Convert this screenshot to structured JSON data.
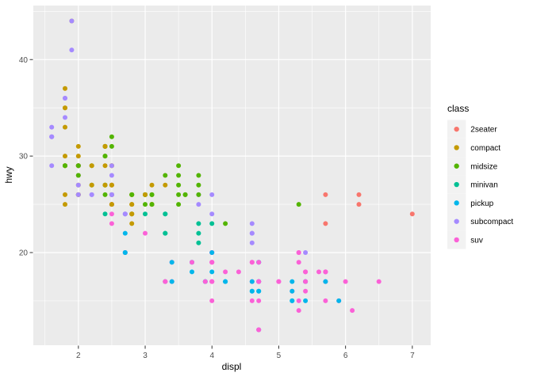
{
  "chart_data": {
    "type": "scatter",
    "title": "",
    "xlabel": "displ",
    "ylabel": "hwy",
    "x_domain": [
      1.325,
      7.275
    ],
    "y_domain": [
      10.4,
      45.6
    ],
    "x_major_ticks": [
      2,
      3,
      4,
      5,
      6,
      7
    ],
    "x_minor_ticks": [
      1.5,
      2.5,
      3.5,
      4.5,
      5.5,
      6.5
    ],
    "y_major_ticks": [
      20,
      30,
      40
    ],
    "y_minor_ticks": [
      15,
      25,
      35,
      45
    ],
    "grid": true,
    "legend_position": "right",
    "legend_title": "class",
    "panel_bg": "#EBEBEB",
    "grid_color": "#FFFFFF",
    "tick_mark_color": "#333333",
    "tick_label_color": "#4D4D4D",
    "axis_title_color": "#000000",
    "legend_key_bg": "#F2F2F2",
    "classes": [
      {
        "label": "2seater",
        "color": "#F8766D"
      },
      {
        "label": "compact",
        "color": "#C49A00"
      },
      {
        "label": "midsize",
        "color": "#53B400"
      },
      {
        "label": "minivan",
        "color": "#00C094"
      },
      {
        "label": "pickup",
        "color": "#00B6EB"
      },
      {
        "label": "subcompact",
        "color": "#A58AFF"
      },
      {
        "label": "suv",
        "color": "#FB61D7"
      }
    ],
    "points": [
      [
        1.8,
        29,
        1
      ],
      [
        1.8,
        29,
        1
      ],
      [
        2.0,
        31,
        1
      ],
      [
        2.0,
        30,
        1
      ],
      [
        2.8,
        26,
        1
      ],
      [
        2.8,
        26,
        1
      ],
      [
        3.1,
        27,
        1
      ],
      [
        1.8,
        26,
        1
      ],
      [
        1.8,
        25,
        1
      ],
      [
        2.0,
        28,
        1
      ],
      [
        2.0,
        27,
        1
      ],
      [
        2.8,
        25,
        1
      ],
      [
        2.8,
        25,
        1
      ],
      [
        3.1,
        25,
        1
      ],
      [
        3.1,
        25,
        1
      ],
      [
        2.8,
        24,
        2
      ],
      [
        3.1,
        25,
        2
      ],
      [
        4.2,
        23,
        2
      ],
      [
        5.3,
        20,
        6
      ],
      [
        5.3,
        15,
        6
      ],
      [
        5.3,
        20,
        6
      ],
      [
        5.7,
        17,
        6
      ],
      [
        6.0,
        17,
        6
      ],
      [
        5.7,
        26,
        0
      ],
      [
        5.7,
        23,
        0
      ],
      [
        6.2,
        26,
        0
      ],
      [
        6.2,
        25,
        0
      ],
      [
        7.0,
        24,
        0
      ],
      [
        5.3,
        19,
        6
      ],
      [
        5.3,
        14,
        6
      ],
      [
        5.7,
        15,
        6
      ],
      [
        6.5,
        17,
        6
      ],
      [
        2.4,
        27,
        2
      ],
      [
        2.4,
        30,
        2
      ],
      [
        3.1,
        26,
        2
      ],
      [
        3.5,
        29,
        2
      ],
      [
        3.6,
        26,
        2
      ],
      [
        2.4,
        24,
        3
      ],
      [
        3.0,
        24,
        3
      ],
      [
        3.3,
        22,
        3
      ],
      [
        3.3,
        22,
        3
      ],
      [
        3.3,
        24,
        3
      ],
      [
        3.3,
        24,
        3
      ],
      [
        3.3,
        17,
        3
      ],
      [
        3.8,
        22,
        3
      ],
      [
        3.8,
        21,
        3
      ],
      [
        3.8,
        23,
        3
      ],
      [
        4.0,
        23,
        3
      ],
      [
        3.7,
        19,
        4
      ],
      [
        3.7,
        18,
        4
      ],
      [
        3.9,
        17,
        4
      ],
      [
        3.9,
        17,
        4
      ],
      [
        4.7,
        19,
        4
      ],
      [
        4.7,
        19,
        4
      ],
      [
        4.7,
        12,
        4
      ],
      [
        5.2,
        17,
        4
      ],
      [
        5.2,
        15,
        4
      ],
      [
        3.9,
        17,
        6
      ],
      [
        4.7,
        17,
        6
      ],
      [
        4.7,
        12,
        6
      ],
      [
        4.7,
        17,
        6
      ],
      [
        5.2,
        16,
        6
      ],
      [
        5.7,
        18,
        6
      ],
      [
        5.9,
        15,
        6
      ],
      [
        4.7,
        16,
        4
      ],
      [
        4.7,
        17,
        4
      ],
      [
        4.7,
        17,
        4
      ],
      [
        4.7,
        16,
        4
      ],
      [
        5.2,
        15,
        4
      ],
      [
        5.2,
        16,
        4
      ],
      [
        5.7,
        17,
        4
      ],
      [
        5.9,
        15,
        4
      ],
      [
        4.6,
        17,
        6
      ],
      [
        5.4,
        17,
        6
      ],
      [
        5.4,
        18,
        6
      ],
      [
        4.0,
        17,
        6
      ],
      [
        4.0,
        17,
        6
      ],
      [
        4.0,
        19,
        6
      ],
      [
        4.0,
        19,
        6
      ],
      [
        4.6,
        19,
        6
      ],
      [
        5.0,
        17,
        6
      ],
      [
        4.2,
        17,
        4
      ],
      [
        4.2,
        17,
        4
      ],
      [
        4.6,
        16,
        4
      ],
      [
        4.6,
        16,
        4
      ],
      [
        4.6,
        17,
        4
      ],
      [
        5.4,
        15,
        4
      ],
      [
        5.4,
        17,
        4
      ],
      [
        3.8,
        26,
        5
      ],
      [
        3.8,
        25,
        5
      ],
      [
        4.0,
        26,
        5
      ],
      [
        4.0,
        24,
        5
      ],
      [
        4.6,
        21,
        5
      ],
      [
        4.6,
        22,
        5
      ],
      [
        4.6,
        23,
        5
      ],
      [
        4.6,
        22,
        5
      ],
      [
        5.4,
        20,
        5
      ],
      [
        1.6,
        33,
        5
      ],
      [
        1.6,
        32,
        5
      ],
      [
        1.6,
        32,
        5
      ],
      [
        1.6,
        29,
        5
      ],
      [
        1.6,
        32,
        5
      ],
      [
        1.8,
        34,
        5
      ],
      [
        1.8,
        36,
        5
      ],
      [
        1.8,
        36,
        5
      ],
      [
        2.0,
        29,
        5
      ],
      [
        2.4,
        26,
        2
      ],
      [
        2.4,
        27,
        2
      ],
      [
        2.4,
        30,
        2
      ],
      [
        2.4,
        31,
        2
      ],
      [
        2.5,
        26,
        2
      ],
      [
        2.5,
        26,
        2
      ],
      [
        3.3,
        28,
        2
      ],
      [
        2.0,
        26,
        5
      ],
      [
        2.0,
        29,
        5
      ],
      [
        2.0,
        28,
        5
      ],
      [
        2.0,
        27,
        5
      ],
      [
        2.7,
        24,
        5
      ],
      [
        2.7,
        24,
        5
      ],
      [
        2.7,
        24,
        5
      ],
      [
        3.0,
        22,
        6
      ],
      [
        3.7,
        19,
        6
      ],
      [
        4.0,
        20,
        6
      ],
      [
        4.7,
        17,
        6
      ],
      [
        4.7,
        19,
        6
      ],
      [
        4.7,
        12,
        6
      ],
      [
        5.7,
        18,
        6
      ],
      [
        6.1,
        14,
        6
      ],
      [
        4.0,
        15,
        6
      ],
      [
        4.2,
        18,
        6
      ],
      [
        4.4,
        18,
        6
      ],
      [
        4.6,
        15,
        6
      ],
      [
        5.4,
        17,
        6
      ],
      [
        5.4,
        16,
        6
      ],
      [
        5.4,
        18,
        6
      ],
      [
        4.0,
        17,
        6
      ],
      [
        4.0,
        19,
        6
      ],
      [
        4.6,
        19,
        6
      ],
      [
        5.0,
        17,
        6
      ],
      [
        2.4,
        29,
        1
      ],
      [
        2.4,
        27,
        1
      ],
      [
        2.5,
        31,
        2
      ],
      [
        2.5,
        32,
        2
      ],
      [
        3.5,
        26,
        2
      ],
      [
        3.5,
        27,
        2
      ],
      [
        3.0,
        26,
        2
      ],
      [
        3.0,
        25,
        2
      ],
      [
        3.5,
        25,
        2
      ],
      [
        3.3,
        17,
        6
      ],
      [
        3.3,
        17,
        6
      ],
      [
        4.0,
        20,
        6
      ],
      [
        5.6,
        18,
        6
      ],
      [
        3.1,
        26,
        2
      ],
      [
        3.8,
        26,
        2
      ],
      [
        3.8,
        27,
        2
      ],
      [
        3.8,
        28,
        2
      ],
      [
        5.3,
        25,
        2
      ],
      [
        2.5,
        25,
        6
      ],
      [
        2.5,
        24,
        6
      ],
      [
        2.5,
        27,
        6
      ],
      [
        2.5,
        25,
        6
      ],
      [
        2.5,
        26,
        6
      ],
      [
        2.5,
        23,
        6
      ],
      [
        2.2,
        26,
        5
      ],
      [
        2.2,
        26,
        5
      ],
      [
        2.5,
        26,
        5
      ],
      [
        2.5,
        26,
        5
      ],
      [
        2.5,
        25,
        1
      ],
      [
        2.5,
        27,
        1
      ],
      [
        2.5,
        25,
        1
      ],
      [
        2.5,
        27,
        1
      ],
      [
        2.7,
        20,
        6
      ],
      [
        2.7,
        20,
        6
      ],
      [
        3.4,
        19,
        6
      ],
      [
        3.4,
        17,
        6
      ],
      [
        4.0,
        20,
        6
      ],
      [
        4.7,
        17,
        6
      ],
      [
        2.2,
        29,
        2
      ],
      [
        2.2,
        27,
        2
      ],
      [
        2.4,
        31,
        2
      ],
      [
        2.4,
        31,
        2
      ],
      [
        3.0,
        26,
        2
      ],
      [
        3.0,
        26,
        2
      ],
      [
        3.5,
        28,
        2
      ],
      [
        2.2,
        27,
        1
      ],
      [
        2.2,
        29,
        1
      ],
      [
        2.4,
        31,
        1
      ],
      [
        2.4,
        31,
        1
      ],
      [
        3.0,
        26,
        1
      ],
      [
        3.3,
        27,
        1
      ],
      [
        1.8,
        30,
        1
      ],
      [
        1.8,
        33,
        1
      ],
      [
        1.8,
        35,
        1
      ],
      [
        1.8,
        37,
        1
      ],
      [
        1.8,
        35,
        1
      ],
      [
        4.7,
        15,
        6
      ],
      [
        5.7,
        18,
        6
      ],
      [
        2.7,
        20,
        4
      ],
      [
        2.7,
        20,
        4
      ],
      [
        2.7,
        22,
        4
      ],
      [
        3.4,
        17,
        4
      ],
      [
        3.4,
        19,
        4
      ],
      [
        4.0,
        18,
        4
      ],
      [
        4.0,
        20,
        4
      ],
      [
        2.0,
        29,
        1
      ],
      [
        2.0,
        26,
        1
      ],
      [
        2.0,
        29,
        1
      ],
      [
        2.0,
        29,
        1
      ],
      [
        2.8,
        24,
        1
      ],
      [
        1.9,
        44,
        1
      ],
      [
        2.0,
        29,
        1
      ],
      [
        2.0,
        26,
        1
      ],
      [
        2.0,
        29,
        1
      ],
      [
        2.0,
        29,
        1
      ],
      [
        2.5,
        29,
        1
      ],
      [
        2.5,
        29,
        1
      ],
      [
        2.8,
        23,
        1
      ],
      [
        2.8,
        24,
        1
      ],
      [
        1.9,
        44,
        5
      ],
      [
        1.9,
        41,
        5
      ],
      [
        2.0,
        29,
        5
      ],
      [
        2.0,
        26,
        5
      ],
      [
        2.5,
        28,
        5
      ],
      [
        2.5,
        29,
        5
      ],
      [
        1.8,
        29,
        2
      ],
      [
        1.8,
        29,
        2
      ],
      [
        2.0,
        28,
        2
      ],
      [
        2.0,
        29,
        2
      ],
      [
        2.8,
        26,
        2
      ],
      [
        2.8,
        26,
        2
      ],
      [
        3.6,
        26,
        2
      ]
    ]
  }
}
